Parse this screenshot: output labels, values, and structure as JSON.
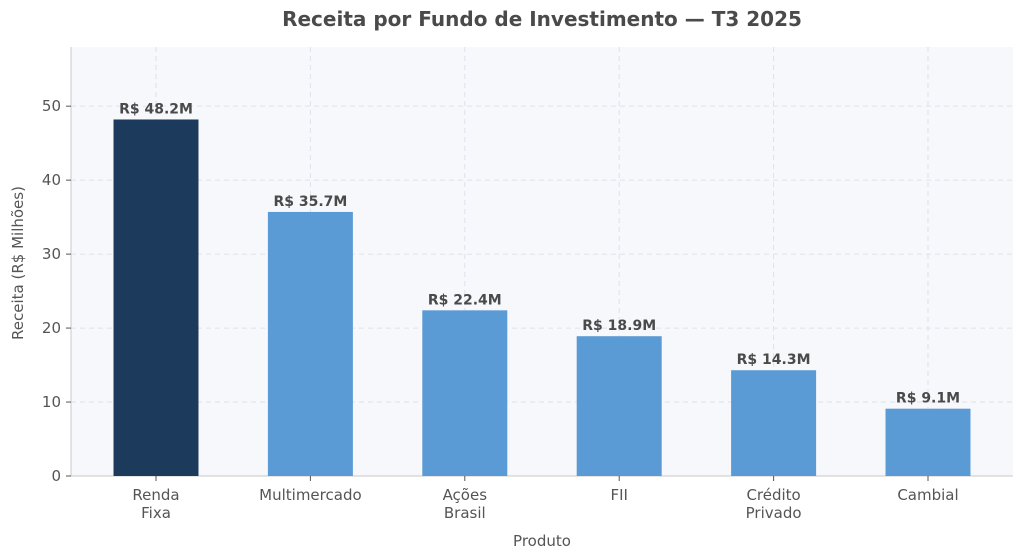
{
  "chart_data": {
    "type": "bar",
    "title": "Receita por Fundo de Investimento — T3 2025",
    "xlabel": "Produto",
    "ylabel": "Receita (R$ Milhões)",
    "categories": [
      [
        "Renda",
        "Fixa"
      ],
      [
        "Multimercado"
      ],
      [
        "Ações",
        "Brasil"
      ],
      [
        "FII"
      ],
      [
        "Crédito",
        "Privado"
      ],
      [
        "Cambial"
      ]
    ],
    "values": [
      48.2,
      35.7,
      22.4,
      18.9,
      14.3,
      9.1
    ],
    "data_labels": [
      "R$ 48.2M",
      "R$ 35.7M",
      "R$ 22.4M",
      "R$ 18.9M",
      "R$ 14.3M",
      "R$ 9.1M"
    ],
    "ylim": [
      0,
      58
    ],
    "yticks": [
      0,
      10,
      20,
      30,
      40,
      50
    ],
    "grid": true,
    "colors": {
      "highlight": "#1c3a5c",
      "bar": "#5b9bd5",
      "plot_background": "#f7f8fc"
    },
    "highlight_index": 0
  }
}
